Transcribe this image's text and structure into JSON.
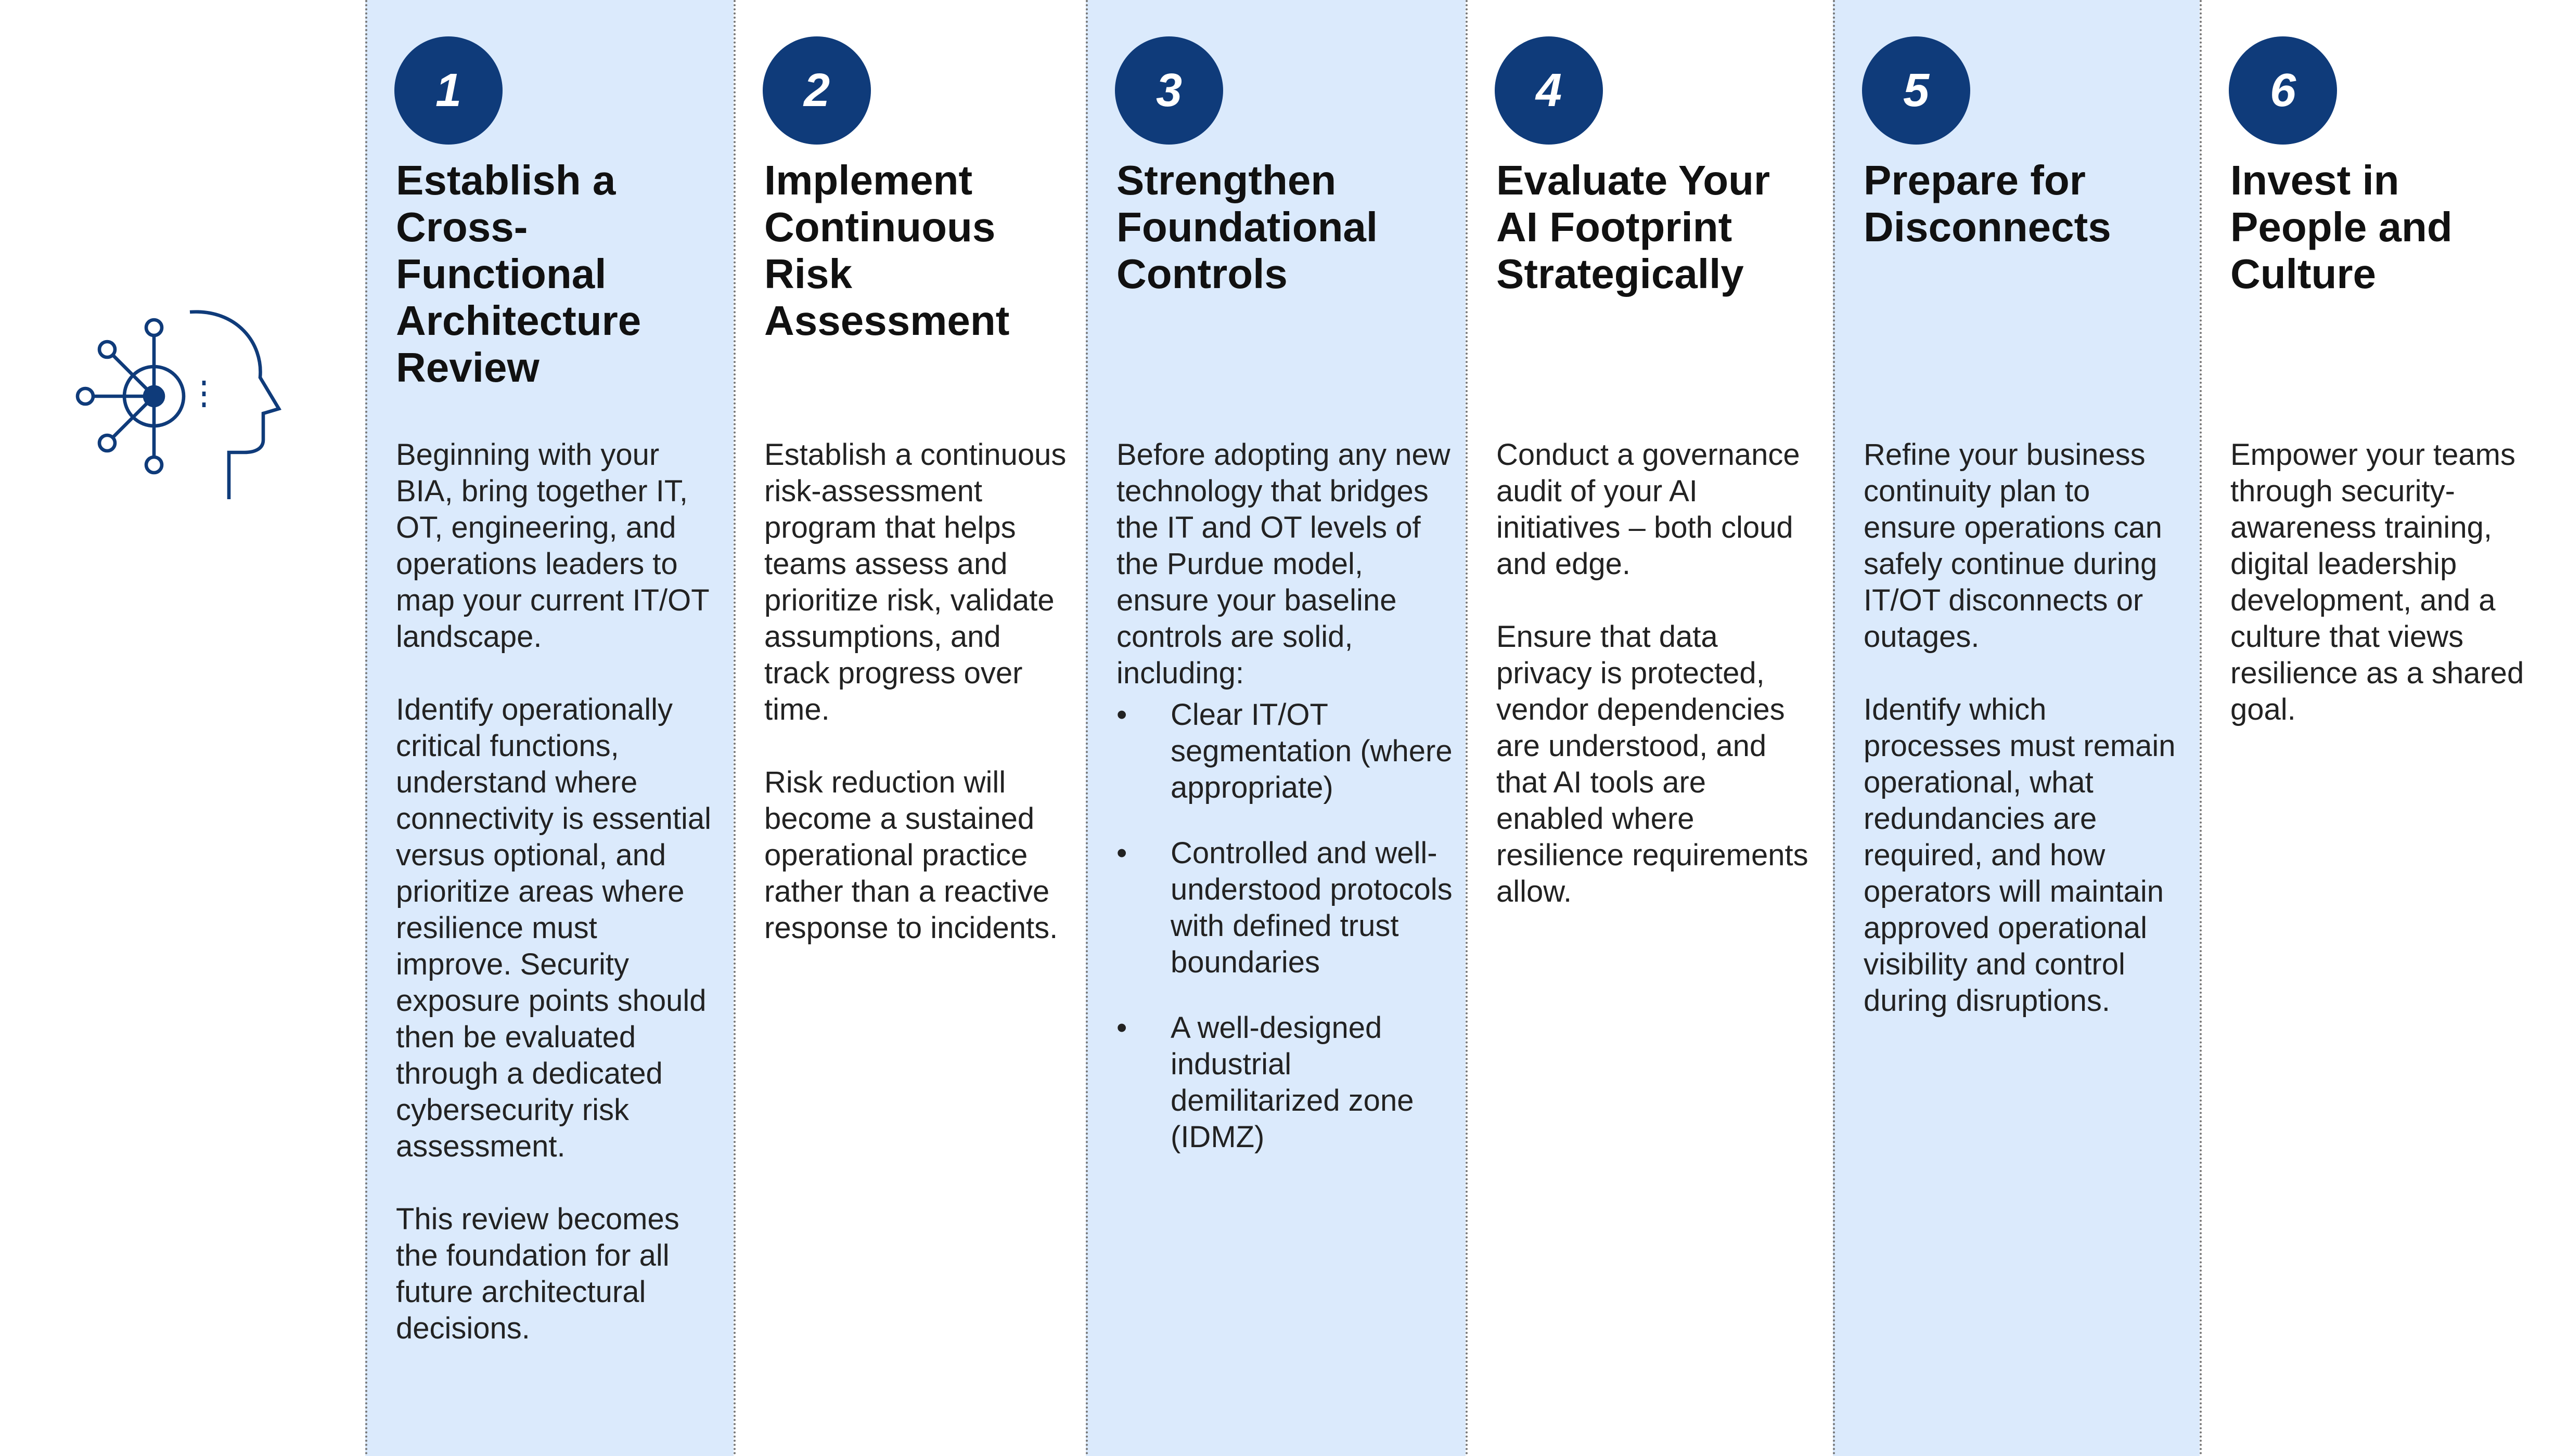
{
  "columns": [
    {
      "number": "1",
      "title": "Establish a Cross-Functional Architecture Review",
      "paragraphs": [
        "Beginning with your BIA, bring together IT, OT, engineering, and operations leaders to map your current IT/OT landscape.",
        "Identify operationally critical functions, understand where connectivity is essential versus optional, and prioritize areas where resilience must improve. Security exposure points should then be evaluated through a dedicated cybersecurity risk assessment.",
        "This review becomes the foundation for all future architectural decisions."
      ],
      "bullets": []
    },
    {
      "number": "2",
      "title": "Implement Continuous Risk Assessment",
      "paragraphs": [
        "Establish a continuous risk-assessment program that helps teams assess and prioritize risk, validate assumptions, and track progress over time.",
        "Risk reduction will become a sustained operational practice rather than a reactive response to incidents."
      ],
      "bullets": []
    },
    {
      "number": "3",
      "title": "Strengthen Foundational Controls",
      "paragraphs": [
        "Before adopting any new technology that bridges the IT and OT levels of the Purdue model, ensure your baseline controls are solid, including:"
      ],
      "bullets": [
        "Clear IT/OT segmentation (where appropriate)",
        "Controlled and well-understood protocols with defined trust boundaries",
        "A well-designed industrial demilitarized zone (IDMZ)"
      ]
    },
    {
      "number": "4",
      "title": "Evaluate Your AI Footprint Strategically",
      "paragraphs": [
        "Conduct a governance audit of your AI initiatives – both cloud and edge.",
        "Ensure that data privacy is protected, vendor dependencies are understood, and that AI tools are enabled where resilience requirements allow."
      ],
      "bullets": []
    },
    {
      "number": "5",
      "title": "Prepare for Disconnects",
      "paragraphs": [
        "Refine your business continuity plan to ensure operations can safely continue during IT/OT disconnects or outages.",
        "Identify which processes must remain operational, what redundancies are required, and how operators will maintain approved operational visibility and control during disruptions."
      ],
      "bullets": []
    },
    {
      "number": "6",
      "title": "Invest in People and Culture",
      "paragraphs": [
        "Empower your teams through security-awareness training, digital leadership development, and a culture that views resilience as a shared goal."
      ],
      "bullets": []
    }
  ]
}
